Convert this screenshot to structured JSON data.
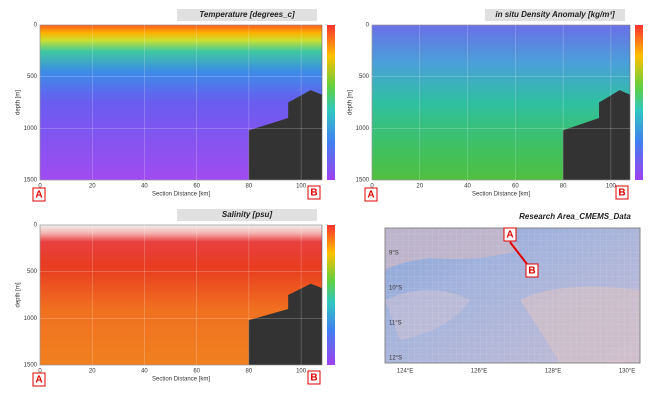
{
  "panels": [
    {
      "title": "Temperature [degrees_c]",
      "y_label": "depth [m]",
      "x_label": "Section Distance [km]",
      "yticks": [
        "0",
        "500",
        "1000",
        "1500"
      ],
      "xticks": [
        "0",
        "20",
        "40",
        "60",
        "80",
        "100"
      ],
      "start": "A",
      "end": "B"
    },
    {
      "title": "in situ Density Anomaly [kg/m³]",
      "y_label": "depth [m]",
      "x_label": "Section Distance [km]",
      "yticks": [
        "0",
        "500",
        "1000",
        "1500"
      ],
      "xticks": [
        "0",
        "20",
        "40",
        "60",
        "80",
        "100"
      ],
      "start": "A",
      "end": "B"
    },
    {
      "title": "Salinity [psu]",
      "y_label": "depth [m]",
      "x_label": "Section Distance [km]",
      "yticks": [
        "0",
        "500",
        "1000",
        "1500"
      ],
      "xticks": [
        "0",
        "20",
        "40",
        "60",
        "80",
        "100"
      ],
      "start": "A",
      "end": "B"
    }
  ],
  "map": {
    "title": "Research Area_CMEMS_Data",
    "point_a": "A",
    "point_b": "B",
    "lat_labels": [
      "9°S",
      "10°S",
      "11°S",
      "12°S"
    ],
    "lon_labels": [
      "124°E",
      "126°E",
      "128°E",
      "130°E"
    ]
  }
}
